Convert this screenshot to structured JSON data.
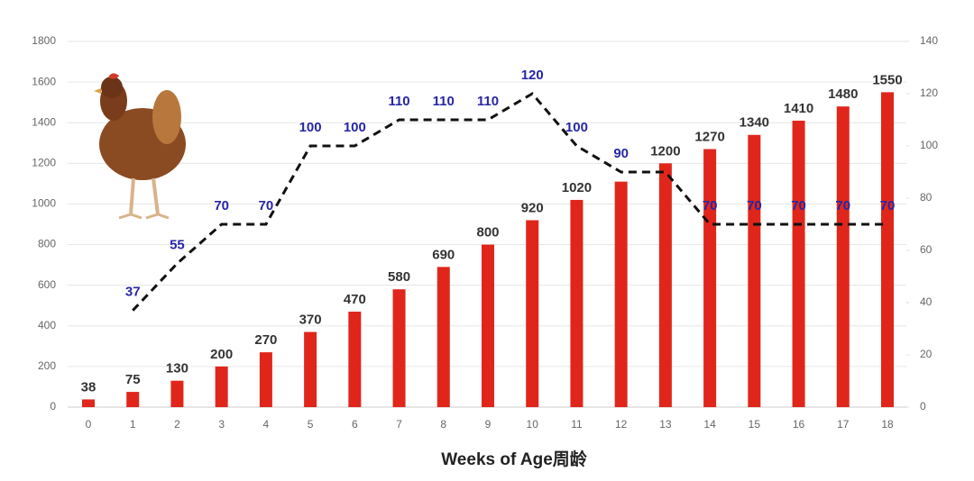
{
  "chart_data": {
    "type": "bar",
    "xlabel": "Weeks of Age周龄",
    "categories": [
      "0",
      "1",
      "2",
      "3",
      "4",
      "5",
      "6",
      "7",
      "8",
      "9",
      "10",
      "11",
      "12",
      "13",
      "14",
      "15",
      "16",
      "17",
      "18"
    ],
    "series": [
      {
        "type": "bar",
        "color": "#e0261b",
        "label_color": "#333333",
        "values": [
          38,
          75,
          130,
          200,
          270,
          370,
          470,
          580,
          690,
          800,
          920,
          1020,
          1110,
          1200,
          1270,
          1340,
          1410,
          1480,
          1550
        ],
        "value_labels": [
          "38",
          "75",
          "130",
          "200",
          "270",
          "370",
          "470",
          "580",
          "690",
          "800",
          "920",
          "1020",
          null,
          "1200",
          "1270",
          "1340",
          "1410",
          "1480",
          "1550"
        ]
      },
      {
        "type": "line",
        "axis": "y2",
        "color": "#111111",
        "label_color": "#2626a6",
        "dashed": true,
        "values": [
          null,
          37,
          55,
          70,
          70,
          100,
          100,
          110,
          110,
          110,
          120,
          100,
          90,
          90,
          70,
          70,
          70,
          70,
          70
        ],
        "value_labels": [
          null,
          "37",
          "55",
          "70",
          "70",
          "100",
          "100",
          "110",
          "110",
          "110",
          "120",
          "100",
          "90",
          null,
          "70",
          "70",
          "70",
          "70",
          "70"
        ]
      }
    ],
    "ylim": [
      0,
      1800
    ],
    "yticks": [
      0,
      200,
      400,
      600,
      800,
      1000,
      1200,
      1400,
      1600,
      1800
    ],
    "y2lim": [
      0,
      140
    ],
    "y2ticks": [
      0,
      20,
      40,
      60,
      80,
      100,
      120,
      140
    ],
    "grid": true
  }
}
